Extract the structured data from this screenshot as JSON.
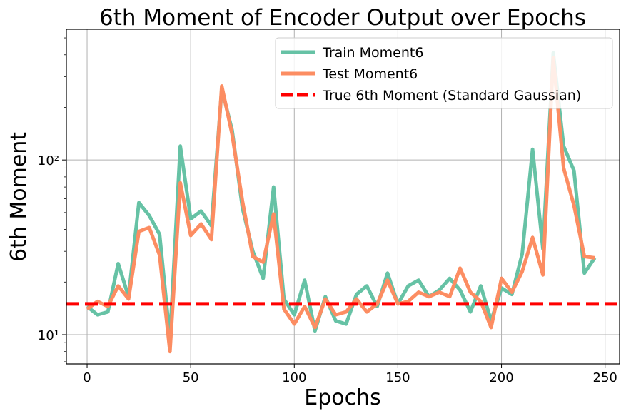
{
  "chart_data": {
    "type": "line",
    "title": "6th Moment of Encoder Output over Epochs",
    "xlabel": "Epochs",
    "ylabel": "6th Moment",
    "xlim": [
      -10,
      257
    ],
    "ylim": [
      6.8,
      560
    ],
    "yscale": "log",
    "grid": true,
    "legend_position": "top-right",
    "x_ticks": [
      0,
      50,
      100,
      150,
      200,
      250
    ],
    "x_tick_labels": [
      "0",
      "50",
      "100",
      "150",
      "200",
      "250"
    ],
    "y_major_ticks": [
      10,
      100
    ],
    "y_major_tick_labels": [
      "10¹",
      "10²"
    ],
    "x": [
      0,
      5,
      10,
      15,
      20,
      25,
      30,
      35,
      40,
      45,
      50,
      55,
      60,
      65,
      70,
      75,
      80,
      85,
      90,
      95,
      100,
      105,
      110,
      115,
      120,
      125,
      130,
      135,
      140,
      145,
      150,
      155,
      160,
      165,
      170,
      175,
      180,
      185,
      190,
      195,
      200,
      205,
      210,
      215,
      220,
      225,
      230,
      235,
      240,
      245
    ],
    "series": [
      {
        "name": "Train Moment6",
        "color": "#66c2a5",
        "dash": "solid",
        "values": [
          14.5,
          13.0,
          13.5,
          25.5,
          16.5,
          57,
          48,
          37.5,
          9.5,
          120,
          46,
          51,
          42,
          255,
          148,
          53,
          30,
          21,
          70,
          16,
          13,
          20.5,
          10.5,
          16.5,
          12,
          11.5,
          17,
          19,
          14.5,
          22.5,
          15,
          19,
          20.5,
          16.5,
          18,
          21,
          18,
          13.5,
          19,
          12,
          18.5,
          17,
          29,
          115,
          31,
          410,
          120,
          87,
          22.5,
          27.5
        ]
      },
      {
        "name": "Test Moment6",
        "color": "#fc8d62",
        "dash": "solid",
        "values": [
          14.0,
          15.5,
          14.5,
          19.0,
          16.0,
          39,
          41,
          28.5,
          8.0,
          74,
          37,
          43,
          35,
          265,
          140,
          58,
          28,
          26,
          49,
          14,
          11.5,
          14.5,
          11,
          16,
          13,
          13.5,
          16,
          13.5,
          15,
          20.5,
          15,
          15.5,
          17.5,
          16.5,
          17.5,
          16.5,
          24,
          17.5,
          15.5,
          11,
          21,
          17.5,
          23,
          36,
          22,
          385,
          90,
          55,
          28,
          27.5
        ]
      },
      {
        "name": "True 6th Moment (Standard Gaussian)",
        "color": "#ff0000",
        "dash": "dashed",
        "constant": 15
      }
    ]
  }
}
